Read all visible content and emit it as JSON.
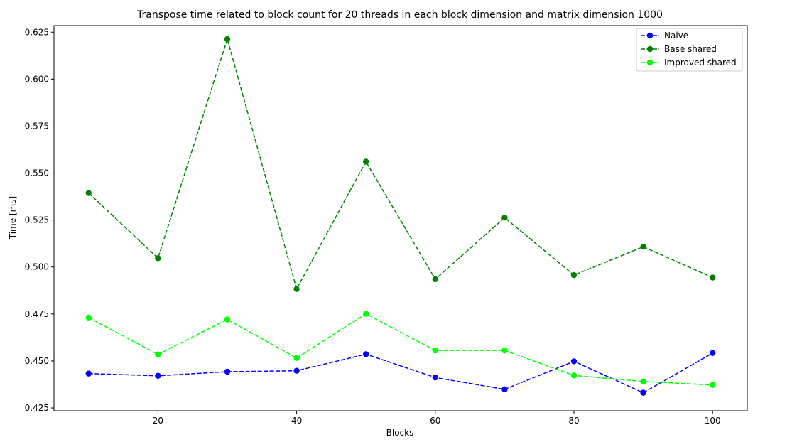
{
  "chart_data": {
    "type": "line",
    "title": "Transpose time related to block count for 20 threads in each block dimension and matrix dimension 1000",
    "xlabel": "Blocks",
    "ylabel": "Time [ms]",
    "x": [
      10,
      20,
      30,
      40,
      50,
      60,
      70,
      80,
      90,
      100
    ],
    "xlim": [
      5,
      105
    ],
    "ylim": [
      0.4235,
      0.6285
    ],
    "xticks": [
      20,
      40,
      60,
      80,
      100
    ],
    "yticks": [
      0.425,
      0.45,
      0.475,
      0.5,
      0.525,
      0.55,
      0.575,
      0.6,
      0.625
    ],
    "xtick_labels": [
      "20",
      "40",
      "60",
      "80",
      "100"
    ],
    "ytick_labels": [
      "0.425",
      "0.450",
      "0.475",
      "0.500",
      "0.525",
      "0.550",
      "0.575",
      "0.600",
      "0.625"
    ],
    "grid": false,
    "legend_position": "top-right",
    "series": [
      {
        "name": "Naive",
        "color": "#0000ff",
        "line_style": "dashed",
        "marker": "circle",
        "values": [
          0.4433,
          0.4421,
          0.4443,
          0.4448,
          0.4536,
          0.4412,
          0.4349,
          0.4498,
          0.4331,
          0.4542
        ]
      },
      {
        "name": "Base shared",
        "color": "#008000",
        "line_style": "dashed",
        "marker": "circle",
        "values": [
          0.5394,
          0.5047,
          0.6213,
          0.4883,
          0.5561,
          0.4935,
          0.5263,
          0.4957,
          0.5108,
          0.4944
        ]
      },
      {
        "name": "Improved shared",
        "color": "#00ff00",
        "line_style": "dashed",
        "marker": "circle",
        "values": [
          0.4731,
          0.4535,
          0.4721,
          0.4516,
          0.4751,
          0.4556,
          0.4556,
          0.4423,
          0.4391,
          0.4372
        ]
      }
    ]
  }
}
